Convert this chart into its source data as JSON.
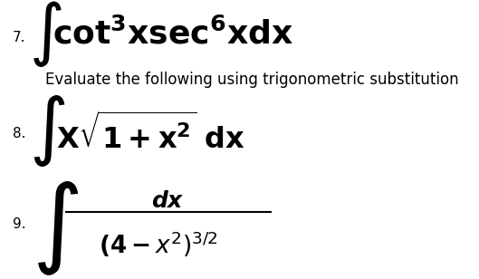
{
  "background_color": "#ffffff",
  "text_color": "#000000",
  "item7_number": "7.",
  "item8_number": "8.",
  "item9_number": "9.",
  "item8_instruction": "Evaluate the following using trigonometric substitution",
  "figsize": [
    5.29,
    3.08
  ],
  "dpi": 100
}
